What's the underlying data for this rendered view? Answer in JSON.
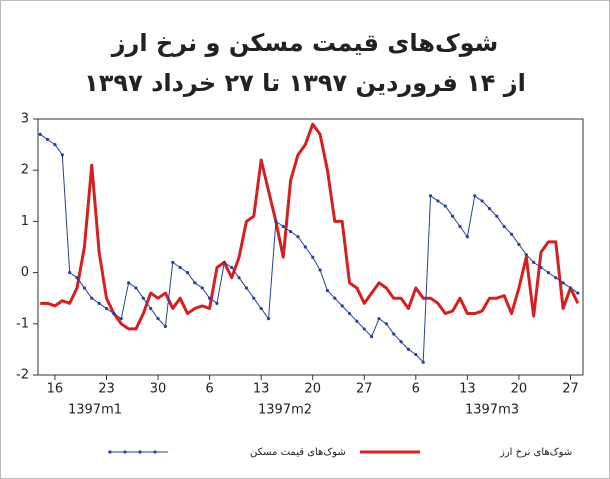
{
  "chart_data": {
    "type": "line",
    "title": "شوک‌های قیمت مسکن و نرخ ارز",
    "subtitle": "از ۱۴ فروردین ۱۳۹۷ تا ۲۷ خرداد ۱۳۹۷",
    "month_labels": [
      "1397m1",
      "1397m2",
      "1397m3"
    ],
    "categories": [
      null,
      null,
      "16",
      null,
      null,
      null,
      null,
      null,
      null,
      "23",
      null,
      null,
      null,
      null,
      null,
      null,
      "30",
      null,
      null,
      null,
      null,
      null,
      null,
      "6",
      null,
      null,
      null,
      null,
      null,
      null,
      "13",
      null,
      null,
      null,
      null,
      null,
      null,
      "20",
      null,
      null,
      null,
      null,
      null,
      null,
      "27",
      null,
      null,
      null,
      null,
      null,
      null,
      "6",
      null,
      null,
      null,
      null,
      null,
      null,
      "13",
      null,
      null,
      null,
      null,
      null,
      null,
      "20",
      null,
      null,
      null,
      null,
      null,
      null,
      "27",
      null
    ],
    "series": [
      {
        "name": "شوک‌های قیمت مسکن",
        "color": "#2b3f9c",
        "markers": true,
        "values": [
          2.7,
          2.6,
          2.5,
          2.3,
          0.0,
          -0.1,
          -0.3,
          -0.5,
          -0.6,
          -0.7,
          -0.8,
          -0.9,
          -0.2,
          -0.3,
          -0.5,
          -0.7,
          -0.9,
          -1.05,
          0.2,
          0.1,
          0.0,
          -0.2,
          -0.3,
          -0.5,
          -0.6,
          0.2,
          0.1,
          -0.1,
          -0.3,
          -0.5,
          -0.7,
          -0.9,
          1.0,
          0.9,
          0.8,
          0.7,
          0.5,
          0.3,
          0.05,
          -0.35,
          -0.5,
          -0.65,
          -0.8,
          -0.95,
          -1.1,
          -1.25,
          -0.9,
          -1.0,
          -1.2,
          -1.35,
          -1.5,
          -1.6,
          -1.75,
          1.5,
          1.4,
          1.3,
          1.1,
          0.9,
          0.7,
          1.5,
          1.4,
          1.25,
          1.1,
          0.9,
          0.75,
          0.55,
          0.35,
          0.2,
          0.1,
          0.0,
          -0.1,
          -0.2,
          -0.3,
          -0.4
        ]
      },
      {
        "name": "شوک‌های نرخ ارز",
        "color": "#d42020",
        "markers": false,
        "values": [
          -0.6,
          -0.6,
          -0.65,
          -0.55,
          -0.6,
          -0.3,
          0.5,
          2.1,
          0.4,
          -0.5,
          -0.8,
          -1.0,
          -1.1,
          -1.1,
          -0.8,
          -0.4,
          -0.5,
          -0.4,
          -0.7,
          -0.5,
          -0.8,
          -0.7,
          -0.65,
          -0.7,
          0.1,
          0.2,
          -0.1,
          0.3,
          1.0,
          1.1,
          2.2,
          1.6,
          1.0,
          0.3,
          1.8,
          2.3,
          2.5,
          2.9,
          2.7,
          2.0,
          1.0,
          1.0,
          -0.2,
          -0.3,
          -0.6,
          -0.4,
          -0.2,
          -0.3,
          -0.5,
          -0.5,
          -0.7,
          -0.3,
          -0.5,
          -0.5,
          -0.6,
          -0.8,
          -0.75,
          -0.5,
          -0.8,
          -0.8,
          -0.75,
          -0.5,
          -0.5,
          -0.45,
          -0.8,
          -0.3,
          0.3,
          -0.85,
          0.4,
          0.6,
          0.6,
          -0.7,
          -0.3,
          -0.6
        ]
      }
    ],
    "ylim": [
      -2,
      3
    ],
    "yticks": [
      -2,
      -1,
      0,
      1,
      2,
      3
    ]
  }
}
